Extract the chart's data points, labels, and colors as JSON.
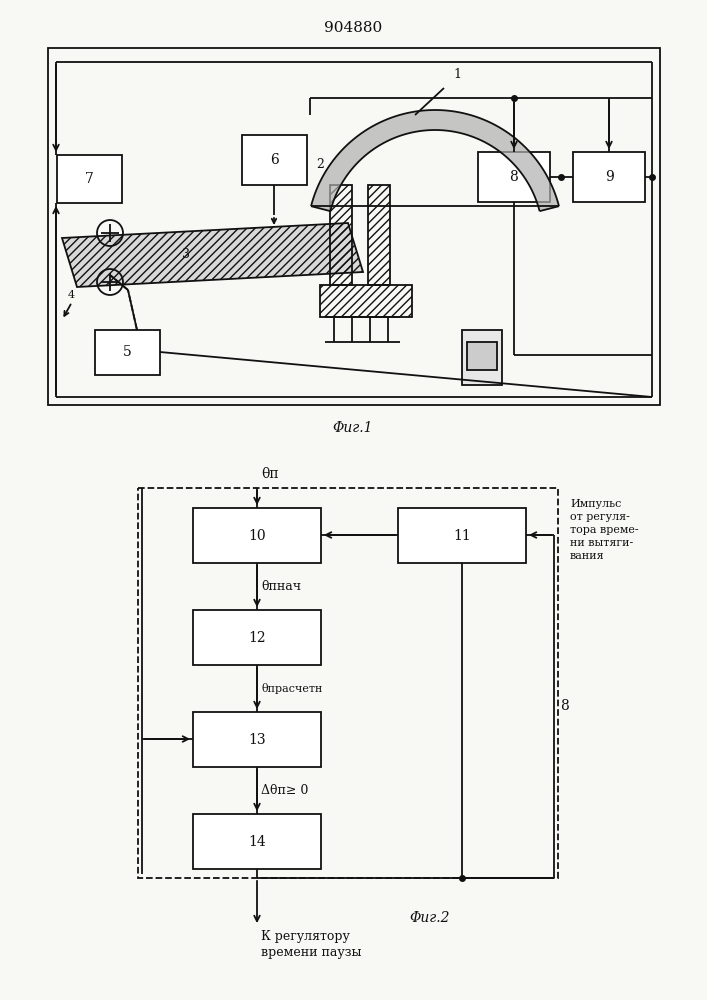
{
  "patent_num": "904880",
  "fig1_caption": "Φиг.1",
  "fig2_caption": "Φиг.2",
  "impulse_text": "Импульс\nот регуля-\nтора време-\nни вытяги-\nвания",
  "output_text": "К регулятору\nвремени паузы",
  "theta_p": "θп",
  "theta_pnach": "θпнач",
  "theta_prasch": "θпрасчетн",
  "delta_theta": "Δθп≥ 0",
  "label_8_fig2": "8",
  "bg": "#f8f8f5",
  "lc": "#111111"
}
